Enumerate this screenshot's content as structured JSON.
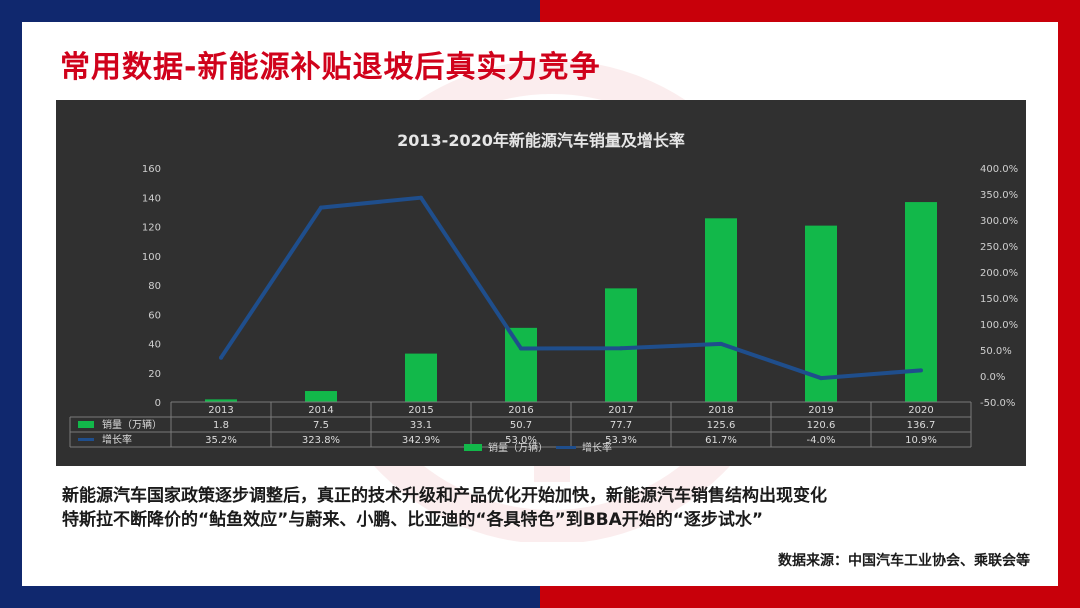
{
  "slide": {
    "title": "常用数据-新能源补贴退坡后真实力竞争",
    "text_line1": "新能源汽车国家政策逐步调整后，真正的技术升级和产品优化开始加快，新能源汽车销售结构出现变化",
    "text_line2": "特斯拉不断降价的“鲇鱼效应”与蔚来、小鹏、比亚迪的“各具特色”到BBA开始的“逐步试水”",
    "source": "数据来源：中国汽车工业协会、乘联会等"
  },
  "colors": {
    "left_band": "#10286e",
    "right_band": "#c8000a",
    "title": "#d0021b",
    "chart_bg": "#303030",
    "bar": "#12b84a",
    "line": "#1f4e8c"
  },
  "chart_data": {
    "type": "bar",
    "title": "2013-2020年新能源汽车销量及增长率",
    "categories": [
      "2013",
      "2014",
      "2015",
      "2016",
      "2017",
      "2018",
      "2019",
      "2020"
    ],
    "series": [
      {
        "name": "销量（万辆）",
        "type": "bar",
        "axis": "left",
        "values": [
          1.8,
          7.5,
          33.1,
          50.7,
          77.7,
          125.6,
          120.6,
          136.7
        ],
        "labels": [
          "1.8",
          "7.5",
          "33.1",
          "50.7",
          "77.7",
          "125.6",
          "120.6",
          "136.7"
        ]
      },
      {
        "name": "增长率",
        "type": "line",
        "axis": "right",
        "values": [
          35.2,
          323.8,
          342.9,
          53.0,
          53.3,
          61.7,
          -4.0,
          10.9
        ],
        "labels": [
          "35.2%",
          "323.8%",
          "342.9%",
          "53.0%",
          "53.3%",
          "61.7%",
          "-4.0%",
          "10.9%"
        ]
      }
    ],
    "left_axis": {
      "ylim": [
        0,
        160
      ],
      "ticks": [
        "0",
        "20",
        "40",
        "60",
        "80",
        "100",
        "120",
        "140",
        "160"
      ]
    },
    "right_axis": {
      "ylim": [
        -50,
        400
      ],
      "ticks": [
        "-50.0%",
        "0.0%",
        "50.0%",
        "100.0%",
        "150.0%",
        "200.0%",
        "250.0%",
        "300.0%",
        "350.0%",
        "400.0%"
      ]
    },
    "data_table": true,
    "legend": "bottom"
  }
}
